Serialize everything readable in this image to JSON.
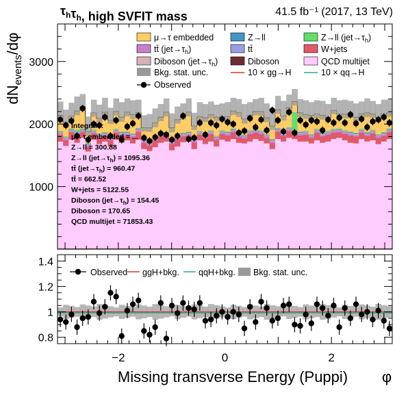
{
  "header": {
    "title": "τ_hτ_h, high SVFIT mass",
    "lumi": "41.5 fb⁻¹ (2017, 13 TeV)"
  },
  "chart_data": [
    {
      "type": "bar",
      "stacked": true,
      "ylabel": "dN_events/dφ",
      "ylim": [
        0,
        3600
      ],
      "yticks": [
        1000,
        2000,
        3000
      ],
      "xlim": [
        -3.14159,
        3.14159
      ],
      "legend_position": "top",
      "colors": {
        "qcd": "#ffccff",
        "wjets": "#de5a6a",
        "ttbar_fake": "#c97ecb",
        "ttbar": "#9a9ee5",
        "diboson_fake": "#d7b3b4",
        "diboson": "#6f2d35",
        "zll_fake": "#64de6a",
        "zll": "#4496c8",
        "embedded": "#ffcc66",
        "bkg_unc": "#999999",
        "ggh": "#dd3322",
        "qqh": "#22aa99"
      },
      "legend": [
        {
          "key": "embedded",
          "label": "μ→τ embedded",
          "style": "fill"
        },
        {
          "key": "zll",
          "label": "Z→ll",
          "style": "fill"
        },
        {
          "key": "zll_fake",
          "label": "Z→ll (jet→τh)",
          "style": "fill"
        },
        {
          "key": "ttbar_fake",
          "label": "tt̄ (jet→τh)",
          "style": "fill"
        },
        {
          "key": "ttbar",
          "label": "tt̄",
          "style": "fill"
        },
        {
          "key": "wjets",
          "label": "W+jets",
          "style": "fill"
        },
        {
          "key": "diboson_fake",
          "label": "Diboson (jet→τh)",
          "style": "fill"
        },
        {
          "key": "diboson",
          "label": "Diboson",
          "style": "fill"
        },
        {
          "key": "qcd",
          "label": "QCD multijet",
          "style": "fill"
        },
        {
          "key": "bkg_unc",
          "label": "Bkg. stat. unc.",
          "style": "fill"
        },
        {
          "key": "ggh",
          "label": "10 × gg→H",
          "style": "line"
        },
        {
          "key": "qqh",
          "label": "10 × qq→H",
          "style": "line"
        },
        {
          "key": "observed",
          "label": "Observed",
          "style": "marker"
        }
      ],
      "integrals": {
        "header": "Integrals:",
        "lines": [
          "μ→τ embedded = ...",
          "Z→ll = 300.88",
          "Z→ll (jet→τh) = 1095.36",
          "tt̄ (jet→τh) = 960.47",
          "tt̄ = 662.52",
          "W+jets = 5122.55",
          "Diboson (jet→τh) = 154.45",
          "Diboson = 170.65",
          "QCD multijet = 71853.43"
        ]
      },
      "bins": {
        "qcd": [
          1720,
          1650,
          1750,
          1700,
          1780,
          1560,
          1750,
          1680,
          1720,
          1640,
          1750,
          1700,
          1740,
          1690,
          1750,
          1600,
          1570,
          1630,
          1700,
          1720,
          1580,
          1640,
          1710,
          1720,
          1600,
          1740,
          1680,
          1720,
          1640,
          1750,
          1720,
          1760,
          1700,
          1690,
          1720,
          1760,
          1730,
          1690,
          1600,
          1760,
          1720,
          1780,
          1760,
          1720,
          1720,
          1690,
          1740,
          1700,
          1720,
          1760,
          1780,
          1740,
          1700,
          1690,
          1760,
          1720,
          1740,
          1680,
          1720,
          1760
        ],
        "wjets": [
          110,
          90,
          120,
          130,
          90,
          80,
          100,
          110,
          90,
          100,
          110,
          120,
          80,
          100,
          130,
          100,
          90,
          110,
          100,
          90,
          100,
          120,
          90,
          100,
          110,
          90,
          100,
          120,
          110,
          90,
          100,
          110,
          90,
          80,
          120,
          100,
          110,
          90,
          100,
          120,
          90,
          110,
          80,
          100,
          110,
          90,
          120,
          100,
          110,
          100,
          90,
          100,
          120,
          110,
          100,
          90,
          110,
          100,
          90,
          110
        ],
        "ttbar_fake": [
          20,
          20,
          20,
          20,
          20,
          20,
          20,
          20,
          20,
          20,
          20,
          20,
          20,
          20,
          20,
          20,
          20,
          20,
          20,
          20,
          20,
          20,
          20,
          20,
          20,
          20,
          20,
          20,
          20,
          20,
          20,
          20,
          20,
          20,
          20,
          20,
          20,
          20,
          20,
          20,
          20,
          20,
          20,
          20,
          20,
          20,
          20,
          20,
          20,
          20,
          20,
          20,
          20,
          20,
          20,
          20,
          20,
          20,
          20,
          20
        ],
        "ttbar": [
          15,
          15,
          15,
          15,
          15,
          15,
          15,
          15,
          15,
          15,
          15,
          15,
          15,
          15,
          15,
          15,
          15,
          15,
          15,
          15,
          15,
          15,
          15,
          15,
          15,
          15,
          15,
          15,
          15,
          15,
          15,
          15,
          15,
          15,
          15,
          15,
          15,
          15,
          15,
          15,
          15,
          15,
          15,
          15,
          15,
          15,
          15,
          15,
          15,
          15,
          15,
          15,
          15,
          15,
          15,
          15,
          15,
          15,
          15,
          15
        ],
        "diboson_fake": [
          5,
          5,
          5,
          5,
          5,
          5,
          5,
          5,
          5,
          5,
          5,
          5,
          5,
          5,
          5,
          5,
          5,
          5,
          5,
          5,
          5,
          5,
          5,
          5,
          5,
          5,
          5,
          5,
          5,
          5,
          5,
          5,
          5,
          5,
          5,
          5,
          5,
          5,
          5,
          5,
          5,
          5,
          5,
          5,
          5,
          5,
          5,
          5,
          5,
          5,
          5,
          5,
          5,
          5,
          5,
          5,
          5,
          5,
          5,
          5
        ],
        "diboson": [
          5,
          5,
          5,
          5,
          5,
          5,
          5,
          5,
          5,
          5,
          5,
          5,
          5,
          5,
          5,
          5,
          5,
          5,
          5,
          5,
          5,
          5,
          5,
          5,
          5,
          5,
          5,
          5,
          5,
          5,
          5,
          5,
          5,
          5,
          5,
          5,
          5,
          5,
          5,
          5,
          5,
          5,
          5,
          5,
          5,
          5,
          5,
          5,
          5,
          5,
          5,
          5,
          5,
          5,
          5,
          5,
          5,
          5,
          5,
          5
        ],
        "zll_fake": [
          10,
          10,
          10,
          30,
          10,
          10,
          10,
          10,
          10,
          10,
          10,
          10,
          10,
          10,
          10,
          10,
          10,
          10,
          10,
          10,
          10,
          10,
          10,
          10,
          10,
          10,
          10,
          10,
          10,
          10,
          10,
          10,
          10,
          10,
          10,
          10,
          10,
          10,
          10,
          10,
          10,
          10,
          300,
          10,
          10,
          10,
          10,
          10,
          10,
          10,
          10,
          10,
          10,
          10,
          10,
          10,
          10,
          10,
          10,
          10
        ],
        "zll": [
          5,
          5,
          5,
          5,
          5,
          5,
          5,
          5,
          5,
          5,
          5,
          5,
          5,
          5,
          5,
          5,
          5,
          5,
          5,
          5,
          5,
          5,
          5,
          5,
          5,
          5,
          5,
          5,
          5,
          5,
          5,
          5,
          5,
          5,
          5,
          5,
          5,
          5,
          5,
          5,
          5,
          5,
          5,
          5,
          5,
          5,
          5,
          5,
          5,
          5,
          5,
          5,
          5,
          5,
          5,
          5,
          5,
          5,
          5,
          5
        ],
        "embedded": [
          250,
          230,
          200,
          300,
          350,
          180,
          270,
          240,
          320,
          260,
          280,
          230,
          310,
          300,
          240,
          180,
          220,
          220,
          250,
          320,
          200,
          250,
          270,
          310,
          200,
          230,
          260,
          250,
          300,
          210,
          240,
          280,
          330,
          250,
          240,
          280,
          300,
          260,
          210,
          290,
          260,
          310,
          170,
          300,
          260,
          300,
          240,
          280,
          220,
          300,
          230,
          260,
          280,
          250,
          240,
          310,
          250,
          260,
          290,
          250
        ],
        "bkg_unc": [
          220,
          200,
          210,
          230,
          200,
          240,
          210,
          220,
          230,
          200,
          210,
          240,
          220,
          230,
          210,
          200,
          220,
          230,
          210,
          220,
          230,
          210,
          200,
          220,
          210,
          230,
          220,
          210,
          200,
          220,
          230,
          210,
          220,
          240,
          210,
          200,
          220,
          230,
          210,
          220,
          240,
          210,
          200,
          220,
          230,
          210,
          220,
          230,
          210,
          200,
          220,
          230,
          210,
          220,
          200,
          230,
          210,
          220,
          230,
          210
        ]
      },
      "observed": [
        2070,
        1980,
        2050,
        1810,
        2250,
        1750,
        2000,
        1980,
        2110,
        1810,
        2060,
        1750,
        1960,
        2010,
        2130,
        1780,
        1730,
        1790,
        1850,
        1830,
        1750,
        1810,
        2130,
        1760,
        1780,
        2020,
        1830,
        2020,
        1980,
        2080,
        2030,
        2000,
        1860,
        1890,
        2090,
        1950,
        2070,
        1900,
        2220,
        2060,
        1880,
        2190,
        1860,
        2060,
        1990,
        2060,
        2040,
        1900,
        2070,
        2020,
        2100,
        2020,
        2150,
        2010,
        2080,
        1950,
        2040,
        2070,
        2110,
        2020
      ],
      "observed_err": [
        60
      ]
    },
    {
      "type": "scatter",
      "xlabel": "Missing transverse Energy (Puppi)",
      "xlabel_symbol": "φ",
      "xlim": [
        -3.14159,
        3.14159
      ],
      "ylim": [
        0.75,
        1.45
      ],
      "yticks": [
        "0.8",
        "1",
        "1.2",
        "1.4"
      ],
      "xticks": [
        "−2",
        "0",
        "2"
      ],
      "xtick_values": [
        -2,
        0,
        2
      ],
      "ytick_values": [
        0.8,
        1.0,
        1.2,
        1.4
      ],
      "legend": [
        {
          "key": "observed",
          "label": "Observed"
        },
        {
          "key": "ggh",
          "label": "ggH+bkg."
        },
        {
          "key": "qqh",
          "label": "qqH+bkg."
        },
        {
          "key": "bkg_unc",
          "label": "Bkg. stat. unc."
        }
      ],
      "ratio": [
        0.94,
        0.92,
        0.98,
        0.88,
        0.95,
        0.96,
        1.08,
        0.99,
        1.04,
        1.15,
        1.12,
        0.81,
        1.01,
        1.06,
        1.09,
        0.85,
        0.82,
        0.88,
        1.07,
        0.79,
        1.05,
        0.99,
        1.07,
        1.03,
        1.02,
        1.07,
        0.93,
        0.94,
        0.97,
        1.0,
        0.96,
        1.0,
        0.98,
        0.87,
        1.04,
        0.92,
        1.08,
        1.03,
        0.93,
        0.95,
        1.05,
        1.06,
        0.9,
        0.89,
        0.98,
        0.91,
        1.06,
        1.03,
        0.97,
        1.05,
        0.88,
        1.03,
        0.95,
        1.06,
        0.98,
        1.0,
        0.94,
        1.01,
        0.93,
        0.87
      ],
      "ratio_err": [
        0.06
      ],
      "unc_band": [
        0.05
      ]
    }
  ]
}
